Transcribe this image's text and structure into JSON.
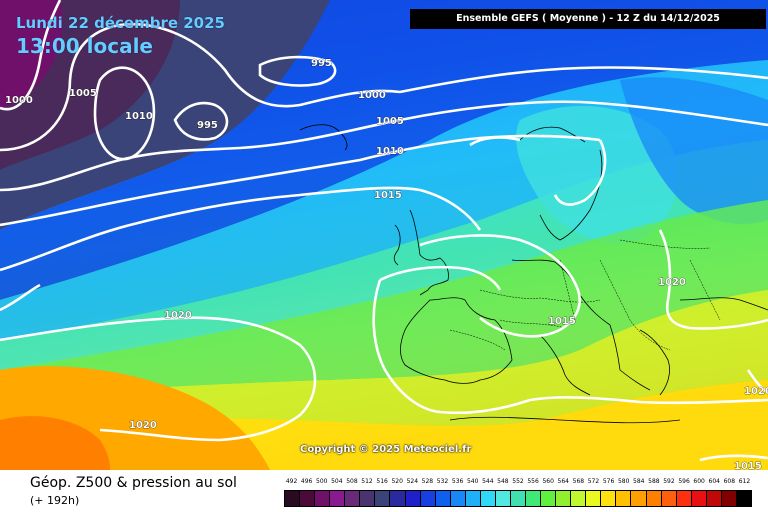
{
  "header": {
    "date": "Lundi 22 décembre 2025",
    "local_time": "13:00 locale",
    "model_run": "Ensemble GEFS  ( Moyenne )  -  12 Z du 14/12/2025"
  },
  "copyright": "Copyright © 2025 Meteociel.fr",
  "legend": {
    "field_title": "Géop. Z500 & pression au sol",
    "lead_time": "(+ 192h)",
    "scale_values": [
      "492",
      "496",
      "500",
      "504",
      "508",
      "512",
      "516",
      "520",
      "524",
      "528",
      "532",
      "536",
      "540",
      "544",
      "548",
      "552",
      "556",
      "560",
      "564",
      "568",
      "572",
      "576",
      "580",
      "584",
      "588",
      "592",
      "596",
      "600",
      "604",
      "608",
      "612"
    ],
    "scale_colors": [
      "#2a0a20",
      "#4a0a3a",
      "#70106a",
      "#8a1a90",
      "#6a2a7a",
      "#4a3470",
      "#3a4478",
      "#2a2aa0",
      "#2020c8",
      "#1840e0",
      "#1060f0",
      "#1888f8",
      "#20b0f8",
      "#30d8f8",
      "#50e8e0",
      "#40e0b0",
      "#40e878",
      "#60f040",
      "#90f030",
      "#c0f830",
      "#e8f820",
      "#ffe010",
      "#ffc000",
      "#ffa000",
      "#ff8000",
      "#ff6010",
      "#ff3010",
      "#e81010",
      "#c00808",
      "#800000",
      "#000000"
    ]
  },
  "isobars": [
    {
      "label": "995"
    },
    {
      "label": "995"
    },
    {
      "label": "1000"
    },
    {
      "label": "1000"
    },
    {
      "label": "1005"
    },
    {
      "label": "1005"
    },
    {
      "label": "1010"
    },
    {
      "label": "1010"
    },
    {
      "label": "1015"
    },
    {
      "label": "1015"
    },
    {
      "label": "1015"
    },
    {
      "label": "1020"
    },
    {
      "label": "1020"
    },
    {
      "label": "1020"
    },
    {
      "label": "1020"
    }
  ]
}
